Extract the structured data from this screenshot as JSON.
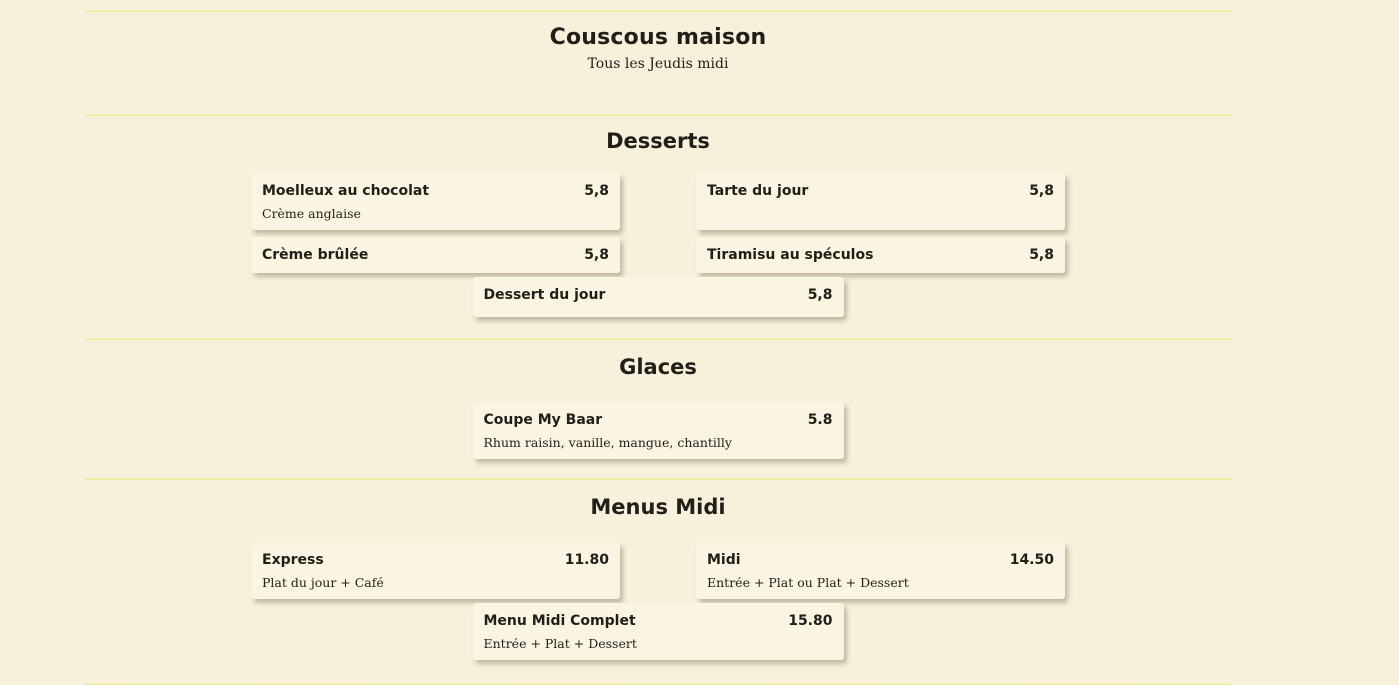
{
  "page": {
    "background_color": "#f7f0da",
    "card_color": "#faf4e2",
    "divider_color": "#e2e58c",
    "text_color": "#201f18"
  },
  "header": {
    "title": "Couscous maison",
    "subtitle": "Tous les Jeudis midi"
  },
  "sections": [
    {
      "heading": "Desserts",
      "items": [
        {
          "name": "Moelleux au chocolat",
          "price": "5,8",
          "description": "Crème anglaise"
        },
        {
          "name": "Tarte du jour",
          "price": "5,8",
          "description": ""
        },
        {
          "name": "Crème brûlée",
          "price": "5,8",
          "description": ""
        },
        {
          "name": "Tiramisu au spéculos",
          "price": "5,8",
          "description": ""
        },
        {
          "name": "Dessert du jour",
          "price": "5,8",
          "description": ""
        }
      ]
    },
    {
      "heading": "Glaces",
      "items": [
        {
          "name": "Coupe My Baar",
          "price": "5.8",
          "description": "Rhum raisin, vanille, mangue, chantilly"
        }
      ]
    },
    {
      "heading": "Menus Midi",
      "items": [
        {
          "name": "Express",
          "price": "11.80",
          "description": "Plat du jour + Café"
        },
        {
          "name": "Midi",
          "price": "14.50",
          "description": "Entrée + Plat ou Plat + Dessert"
        },
        {
          "name": "Menu Midi Complet",
          "price": "15.80",
          "description": "Entrée + Plat + Dessert"
        }
      ]
    }
  ]
}
